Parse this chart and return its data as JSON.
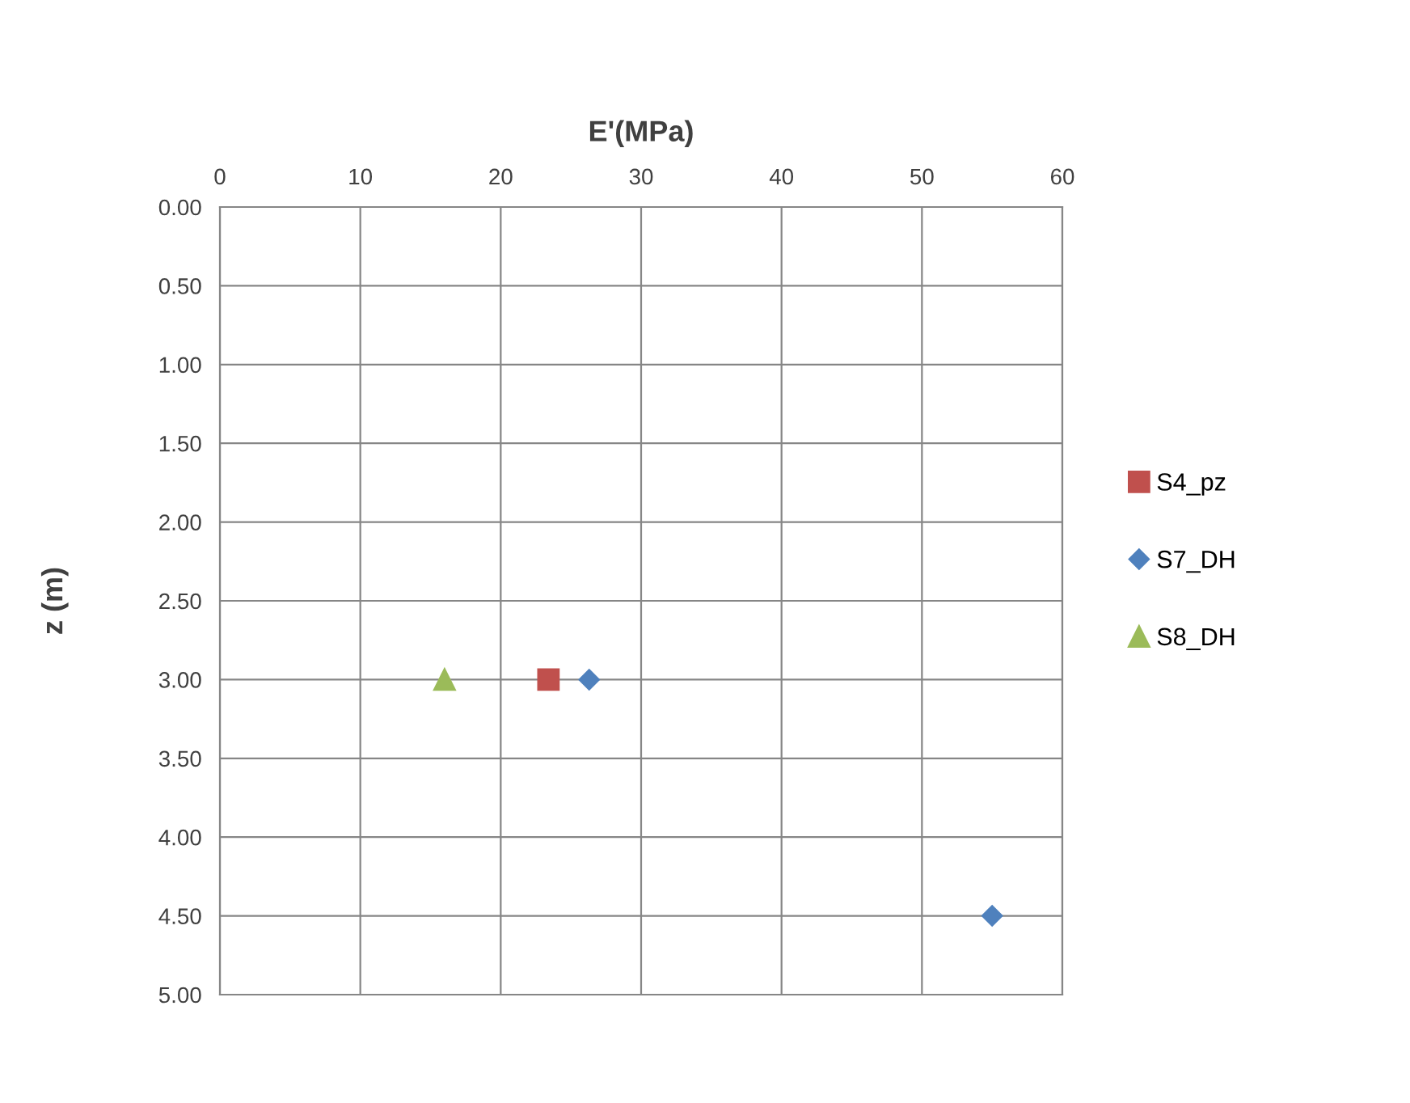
{
  "chart_data": {
    "type": "scatter",
    "xlabel": "E'(MPa)",
    "ylabel": "z (m)",
    "xlim": [
      0,
      60
    ],
    "xticks": [
      0,
      10,
      20,
      30,
      40,
      50,
      60
    ],
    "ylim": [
      5,
      0
    ],
    "yticks": [
      {
        "value": 0,
        "label": "0.00"
      },
      {
        "value": 0.5,
        "label": "0.50"
      },
      {
        "value": 1,
        "label": "1.00"
      },
      {
        "value": 1.5,
        "label": "1.50"
      },
      {
        "value": 2,
        "label": "2.00"
      },
      {
        "value": 2.5,
        "label": "2.50"
      },
      {
        "value": 3,
        "label": "3.00"
      },
      {
        "value": 3.5,
        "label": "3.50"
      },
      {
        "value": 4,
        "label": "4.00"
      },
      {
        "value": 4.5,
        "label": "4.50"
      },
      {
        "value": 5,
        "label": "5.00"
      }
    ],
    "grid": true,
    "legend": "right",
    "series": [
      {
        "name": "S4_pz",
        "color": "#c0504d",
        "marker": "square",
        "x": [
          23.4
        ],
        "values": [
          3.0
        ]
      },
      {
        "name": "S7_DH",
        "color": "#4f81bd",
        "marker": "diamond",
        "x": [
          26.3,
          55.0
        ],
        "values": [
          3.0,
          4.5
        ]
      },
      {
        "name": "S8_DH",
        "color": "#9bbb59",
        "marker": "triangle",
        "x": [
          16.0
        ],
        "values": [
          3.0
        ]
      }
    ]
  }
}
